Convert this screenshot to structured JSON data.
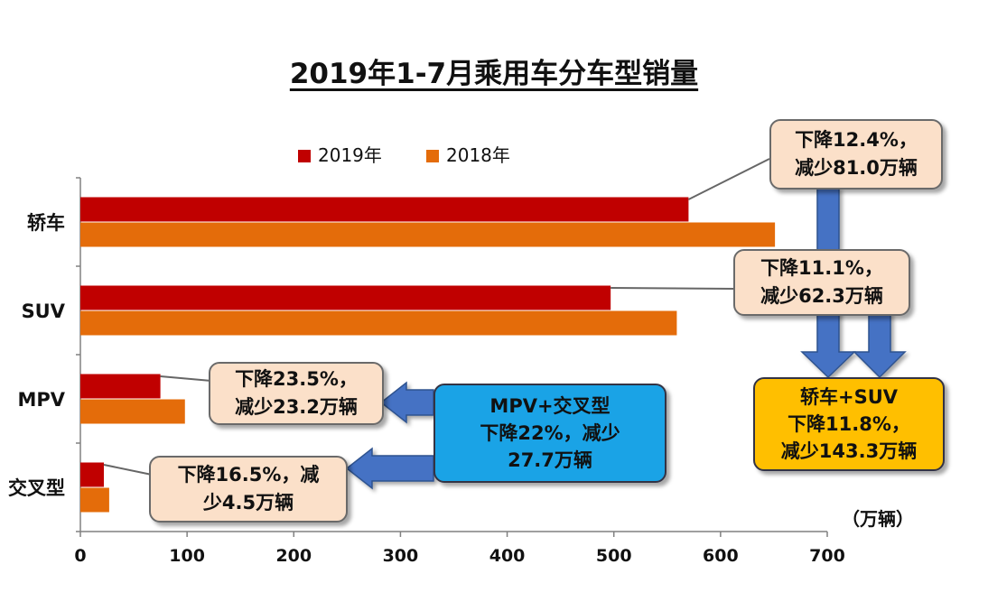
{
  "chart_data": {
    "type": "bar",
    "orientation": "horizontal",
    "title": "2019年1-7月乘用车分车型销量",
    "categories": [
      "轿车",
      "SUV",
      "MPV",
      "交叉型"
    ],
    "series": [
      {
        "name": "2019年",
        "color": "#c00000",
        "values": [
          570,
          497,
          75,
          22
        ]
      },
      {
        "name": "2018年",
        "color": "#e46c0a",
        "values": [
          651,
          559,
          98,
          27
        ]
      }
    ],
    "xlim": [
      0,
      700
    ],
    "xticks": [
      0,
      100,
      200,
      300,
      400,
      500,
      600,
      700
    ],
    "unit": "（万辆）",
    "legend_position": "top"
  },
  "annotations": {
    "sedan": {
      "line1": "下降12.4%，",
      "line2": "减少81.0万辆"
    },
    "suv": {
      "line1": "下降11.1%，",
      "line2": "减少62.3万辆"
    },
    "mpv": {
      "line1": "下降23.5%，",
      "line2": "减少23.2万辆"
    },
    "crossover": {
      "line1": "下降16.5%，减",
      "line2": "少4.5万辆"
    },
    "mpv_cross": {
      "line1": "MPV+交叉型",
      "line2": "下降22%，减少",
      "line3": "27.7万辆"
    },
    "sedan_suv": {
      "line1": "轿车+SUV",
      "line2": "下降11.8%，",
      "line3": "减少143.3万辆"
    }
  }
}
